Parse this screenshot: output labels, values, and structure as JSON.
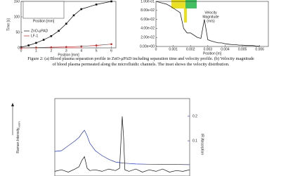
{
  "chart_data": [
    {
      "type": "line",
      "ylabel": "Time [s]",
      "xlabel": "Position [mm]",
      "inset_xlabel": "Position [mm]",
      "xlim": [
        0,
        6.3
      ],
      "xticks": [
        0,
        1,
        2,
        3,
        4,
        5,
        6
      ],
      "ylim": [
        0,
        150
      ],
      "yticks": [
        0,
        50,
        100,
        150
      ],
      "legend": "left",
      "series": [
        {
          "name": "ZnO-μPAD",
          "color": "#111111",
          "marker": "square",
          "x": [
            0,
            0.5,
            1,
            1.5,
            2,
            2.5,
            3,
            3.5,
            4,
            5,
            6
          ],
          "values": [
            2,
            8,
            16,
            26,
            38,
            55,
            78,
            105,
            125,
            140,
            150
          ]
        },
        {
          "name": "LF-1",
          "color": "#d62020",
          "marker": "circle",
          "x": [
            0,
            1,
            2,
            3,
            4,
            5,
            6
          ],
          "values": [
            0,
            1,
            2,
            3,
            5,
            8,
            12
          ]
        }
      ]
    },
    {
      "type": "line",
      "ylabel": [
        "Velocity",
        "Magnitude",
        "(m/s)"
      ],
      "xlabel": "Position [m]",
      "xlim": [
        0,
        0.0065
      ],
      "xticks": [
        0,
        0.001,
        0.002,
        0.003,
        0.004,
        0.005,
        0.006
      ],
      "ylim": [
        0,
        0.1
      ],
      "yticks": [
        {
          "value": 0,
          "label": "0.00e+00"
        },
        {
          "value": 0.02,
          "label": "2.00e-02"
        },
        {
          "value": 0.04,
          "label": "4.00e-02"
        },
        {
          "value": 0.06,
          "label": "6.00e-02"
        },
        {
          "value": 0.08,
          "label": "8.00e-02"
        },
        {
          "value": 0.1,
          "label": "1.00e-01"
        }
      ],
      "series": [
        {
          "name": null,
          "color": "#222222",
          "x": [
            0,
            0.0002,
            0.0004,
            0.0006,
            0.0008,
            0.001,
            0.0012,
            0.0014,
            0.0016,
            0.0018,
            0.002,
            0.0022,
            0.0024,
            0.0026,
            0.0028,
            0.003,
            0.0032,
            0.0034,
            0.0036,
            0.0038,
            0.004,
            0.0042,
            0.0044,
            0.0046,
            0.0048,
            0.005,
            0.0052,
            0.0054,
            0.0056,
            0.0058,
            0.006
          ],
          "values": [
            0.1,
            0.098,
            0.096,
            0.094,
            0.09,
            0.085,
            0.08,
            0.075,
            0.04,
            0.03,
            0.03,
            0.025,
            0.02,
            0.018,
            0.06,
            0.015,
            0.012,
            0.01,
            0.008,
            0.008,
            0.006,
            0.005,
            0.004,
            0.004,
            0.003,
            0.003,
            0.002,
            0.002,
            0.002,
            0.001,
            0.001
          ]
        }
      ]
    },
    {
      "type": "line",
      "ylabel": "Raman Intensity",
      "ylabel_sub": "norm",
      "y2label": "IR Absorption",
      "xlim": [
        0,
        100
      ],
      "ylim": [
        0,
        1
      ],
      "y2lim": [
        0,
        0.2
      ],
      "y2ticks": [
        0.1,
        0.2
      ],
      "series": [
        {
          "name": "Raman",
          "color": "#111111",
          "x": [
            0,
            5,
            10,
            15,
            18,
            20,
            22,
            24,
            26,
            30,
            35,
            40,
            45,
            48,
            50,
            51,
            52,
            55,
            60,
            65,
            70,
            75,
            80,
            85,
            90,
            95,
            100
          ],
          "values": [
            0.06,
            0.08,
            0.05,
            0.09,
            0.12,
            0.2,
            0.25,
            0.1,
            0.07,
            0.08,
            0.06,
            0.09,
            0.07,
            0.1,
            0.77,
            0.5,
            0.08,
            0.06,
            0.09,
            0.05,
            0.08,
            0.06,
            0.09,
            0.05,
            0.07,
            0.06,
            0.08
          ]
        },
        {
          "name": "IR",
          "color": "#2233dd",
          "axis": "y2",
          "x": [
            0,
            5,
            10,
            15,
            18,
            20,
            22,
            24,
            26,
            30,
            35,
            40,
            45,
            50,
            55,
            60,
            70,
            80,
            90,
            100
          ],
          "values": [
            0.057,
            0.06,
            0.08,
            0.1,
            0.114,
            0.13,
            0.143,
            0.12,
            0.09,
            0.06,
            0.04,
            0.025,
            0.014,
            0.01,
            0.008,
            0.006,
            0.005,
            0.004,
            0.004,
            0.003
          ]
        }
      ]
    }
  ],
  "caption": "Figure 2: (a) Blood plasma separation profile in ZnO-μPAD including separation time and velocity profile. (b) Velocity magnitude of blood plasma permeated along the microfluidic channels. The inset shows the velocity distribution."
}
